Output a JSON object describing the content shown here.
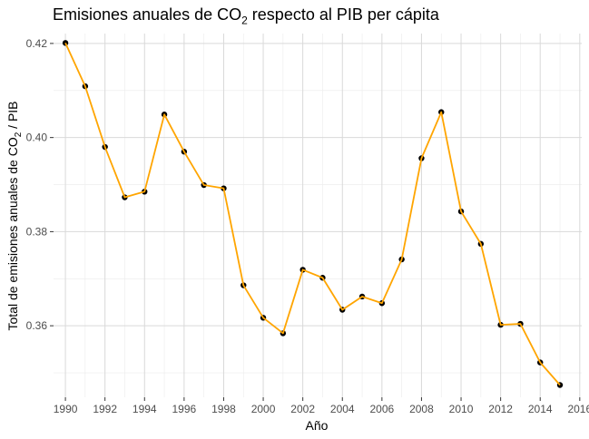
{
  "chart_data": {
    "type": "line",
    "title_parts": {
      "pre": "Emisiones anuales de  CO",
      "sub": "2",
      "post": " respecto al PIB per cápita"
    },
    "xlabel": "Año",
    "ylabel_parts": {
      "pre": "Total de emisiones anuales de  CO",
      "sub": "2",
      "post": " / PIB"
    },
    "xlim": [
      1989.4,
      2016.1
    ],
    "ylim": [
      0.3448,
      0.4221
    ],
    "x_ticks": [
      1990,
      1992,
      1994,
      1996,
      1998,
      2000,
      2002,
      2004,
      2006,
      2008,
      2010,
      2012,
      2014,
      2016
    ],
    "y_ticks": [
      0.36,
      0.38,
      0.4,
      0.42
    ],
    "y_tick_labels": [
      "0.36",
      "0.38",
      "0.40",
      "0.42"
    ],
    "grid": true,
    "line_color": "#FFA500",
    "point_color": "#000000",
    "series": [
      {
        "x": [
          1990,
          1991,
          1992,
          1993,
          1994,
          1995,
          1996,
          1997,
          1998,
          1999,
          2000,
          2001,
          2002,
          2003,
          2004,
          2005,
          2006,
          2007,
          2008,
          2009,
          2010,
          2011,
          2012,
          2013,
          2014,
          2015
        ],
        "y": [
          0.4201,
          0.4109,
          0.398,
          0.3873,
          0.3885,
          0.4049,
          0.397,
          0.3899,
          0.3892,
          0.3686,
          0.3617,
          0.3584,
          0.3719,
          0.3702,
          0.3634,
          0.3662,
          0.3648,
          0.3741,
          0.3956,
          0.4054,
          0.3843,
          0.3774,
          0.3602,
          0.3604,
          0.3522,
          0.3474
        ]
      }
    ]
  }
}
